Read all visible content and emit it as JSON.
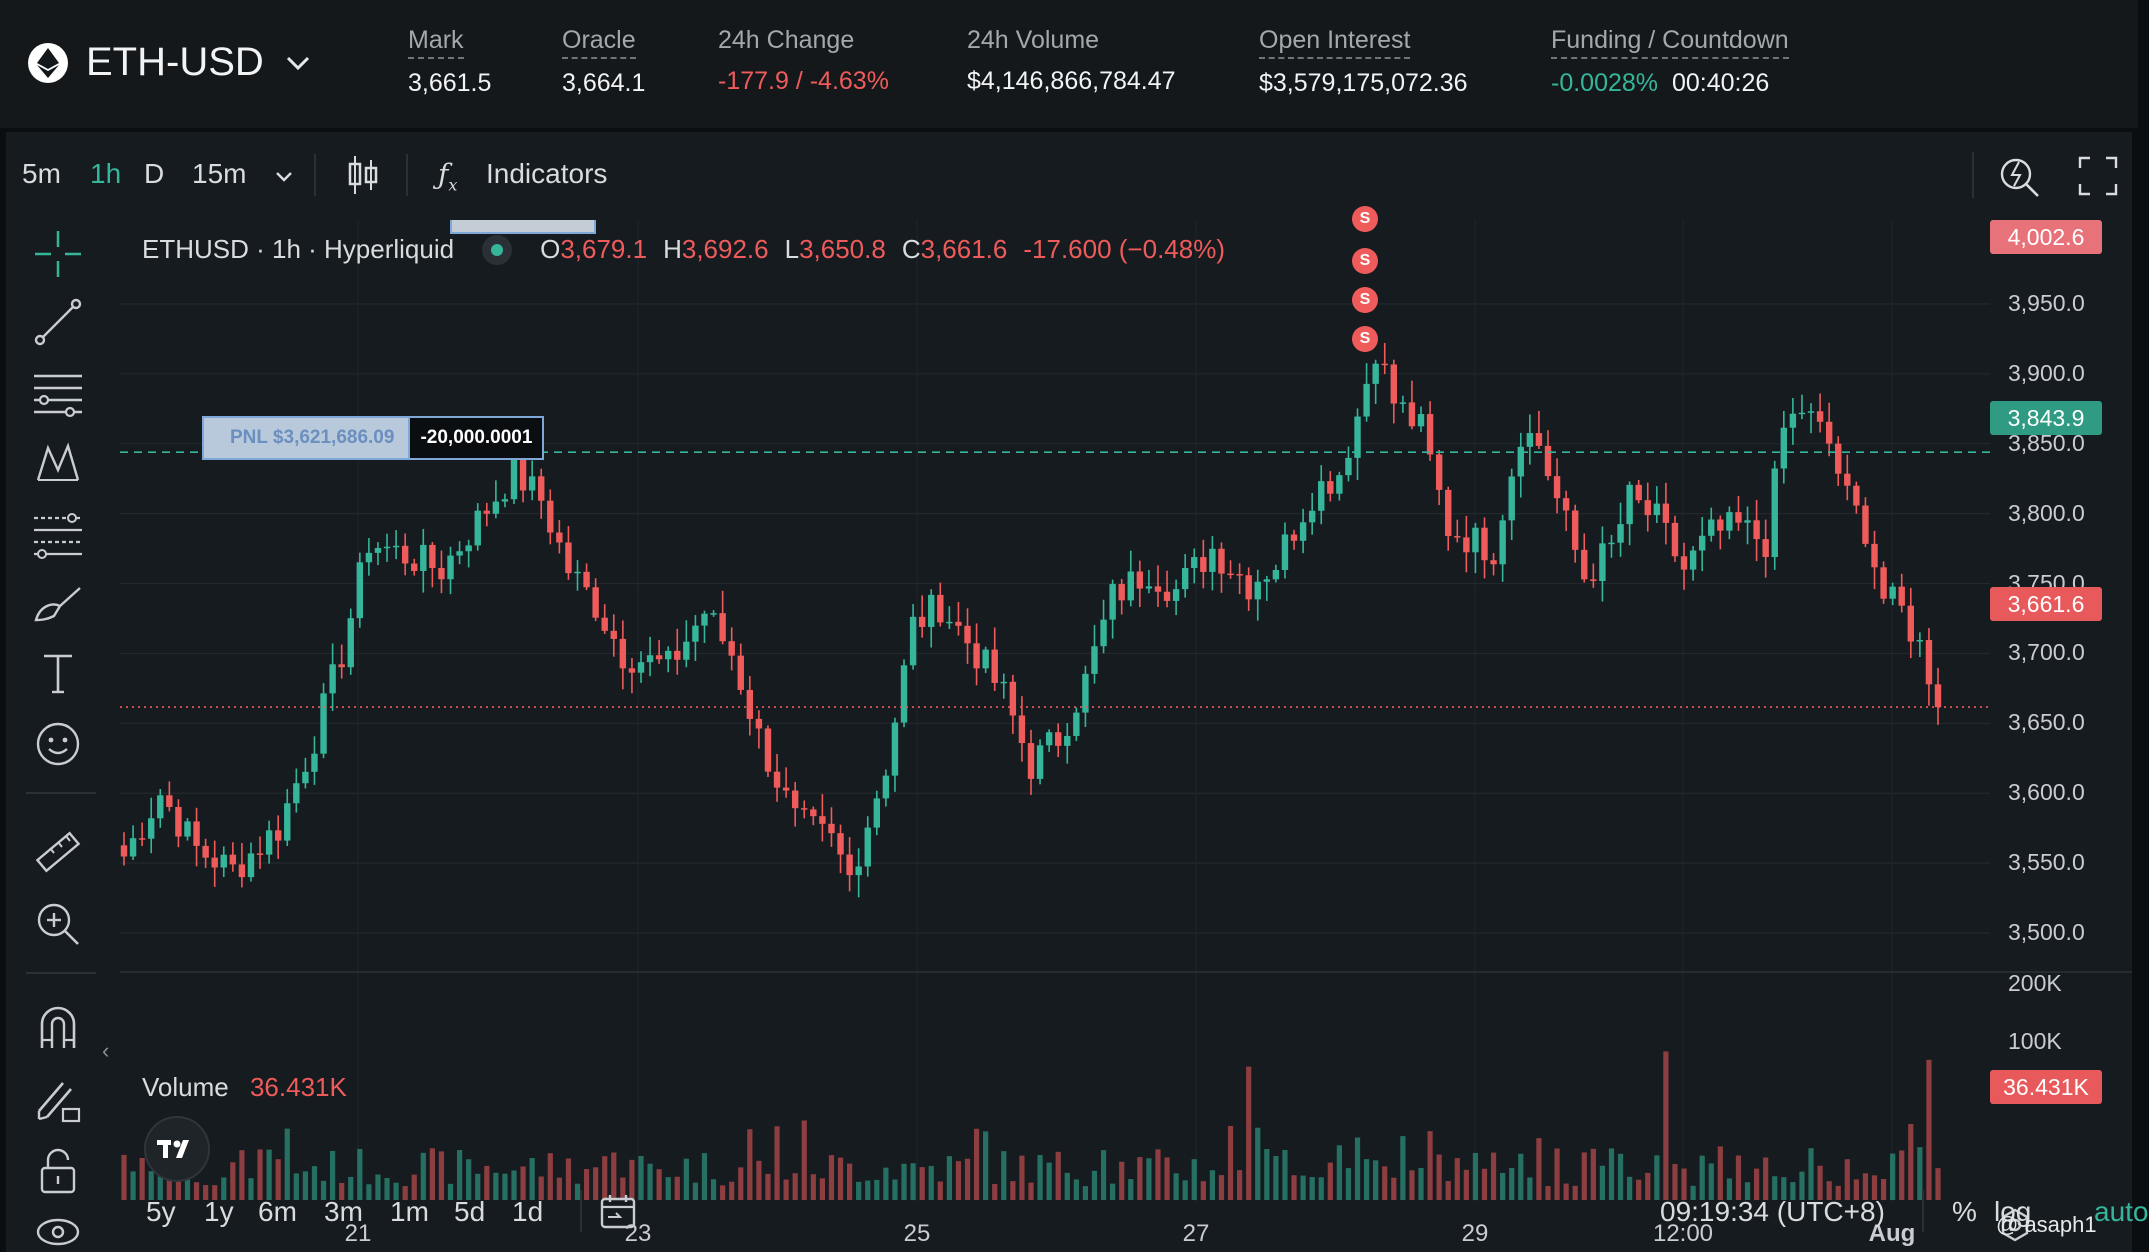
{
  "header": {
    "symbol": "ETH-USD",
    "stats": [
      {
        "label": "Mark",
        "value": "3,661.5"
      },
      {
        "label": "Oracle",
        "value": "3,664.1"
      },
      {
        "label": "24h Change",
        "value": "-177.9 / -4.63%"
      },
      {
        "label": "24h Volume",
        "value": "$4,146,866,784.47"
      },
      {
        "label": "Open Interest",
        "value": "$3,579,175,072.36"
      }
    ],
    "funding": {
      "label": "Funding / Countdown",
      "rate": "-0.0028%",
      "countdown": "00:40:26"
    }
  },
  "toolbar": {
    "intervals": [
      "5m",
      "1h",
      "D"
    ],
    "selected_interval": "1h",
    "dropdown_interval": "15m",
    "indicators_label": "Indicators"
  },
  "legend": {
    "title": "ETHUSD · 1h · Hyperliquid",
    "o_label": "O",
    "o": "3,679.1",
    "h_label": "H",
    "h": "3,692.6",
    "l_label": "L",
    "l": "3,650.8",
    "c_label": "C",
    "c": "3,661.6",
    "change": "-17.600 (−0.48%)"
  },
  "position": {
    "pnl_label": "PNL $3,621,686.09",
    "size_label": "-20,000.0001"
  },
  "markers": [
    "S",
    "S",
    "S",
    "S"
  ],
  "price_tags": {
    "top": "4,002.6",
    "entry": "3,843.9",
    "last": "3,661.6",
    "volume": "36.431K"
  },
  "volume_legend": {
    "label": "Volume",
    "value": "36.431K"
  },
  "bottom": {
    "ranges": [
      "5y",
      "1y",
      "6m",
      "3m",
      "1m",
      "5d",
      "1d"
    ],
    "clock": "09:19:34 (UTC+8)",
    "percent": "%",
    "log": "log",
    "auto": "auto",
    "watermark": "@ asaph1"
  },
  "colors": {
    "up": "#35b69b",
    "down": "#ef5b5b",
    "background": "#161b1f",
    "entry_line": "#35b69b",
    "last_line": "#ef5b5b"
  },
  "chart_data": {
    "type": "candlestick",
    "title": "ETHUSD · 1h · Hyperliquid",
    "y_ticks": [
      "3,950.0",
      "3,900.0",
      "3,850.0",
      "3,800.0",
      "3,750.0",
      "3,700.0",
      "3,650.0",
      "3,600.0",
      "3,550.0",
      "3,500.0"
    ],
    "ylim": [
      3475,
      4010
    ],
    "x_ticks": [
      "21",
      "23",
      "25",
      "27",
      "29",
      "12:00",
      "Aug"
    ],
    "entry_price": 3843.9,
    "last_price": 3661.6,
    "volume_ticks": [
      "200K",
      "100K"
    ],
    "volume_max": 220000,
    "close_path": [
      [
        0,
        3555
      ],
      [
        4,
        3600
      ],
      [
        8,
        3560
      ],
      [
        12,
        3545
      ],
      [
        17,
        3575
      ],
      [
        21,
        3640
      ],
      [
        24,
        3700
      ],
      [
        27,
        3780
      ],
      [
        31,
        3770
      ],
      [
        35,
        3760
      ],
      [
        39,
        3795
      ],
      [
        43,
        3830
      ],
      [
        46,
        3810
      ],
      [
        49,
        3760
      ],
      [
        52,
        3735
      ],
      [
        55,
        3700
      ],
      [
        60,
        3690
      ],
      [
        64,
        3730
      ],
      [
        67,
        3700
      ],
      [
        70,
        3640
      ],
      [
        74,
        3580
      ],
      [
        78,
        3565
      ],
      [
        80,
        3540
      ],
      [
        84,
        3620
      ],
      [
        87,
        3720
      ],
      [
        90,
        3735
      ],
      [
        94,
        3700
      ],
      [
        97,
        3670
      ],
      [
        100,
        3620
      ],
      [
        103,
        3640
      ],
      [
        106,
        3680
      ],
      [
        109,
        3740
      ],
      [
        113,
        3760
      ],
      [
        116,
        3745
      ],
      [
        120,
        3775
      ],
      [
        124,
        3750
      ],
      [
        127,
        3765
      ],
      [
        131,
        3815
      ],
      [
        134,
        3830
      ],
      [
        136,
        3870
      ],
      [
        138,
        3920
      ],
      [
        140,
        3880
      ],
      [
        143,
        3860
      ],
      [
        146,
        3790
      ],
      [
        149,
        3780
      ],
      [
        151,
        3775
      ],
      [
        154,
        3860
      ],
      [
        156,
        3850
      ],
      [
        158,
        3810
      ],
      [
        161,
        3755
      ],
      [
        164,
        3775
      ],
      [
        166,
        3810
      ],
      [
        169,
        3795
      ],
      [
        172,
        3760
      ],
      [
        175,
        3785
      ],
      [
        178,
        3790
      ],
      [
        181,
        3780
      ],
      [
        183,
        3860
      ],
      [
        185,
        3875
      ],
      [
        188,
        3850
      ],
      [
        190,
        3810
      ],
      [
        192,
        3790
      ],
      [
        194,
        3740
      ],
      [
        196,
        3730
      ],
      [
        198,
        3705
      ],
      [
        200,
        3668
      ]
    ]
  }
}
